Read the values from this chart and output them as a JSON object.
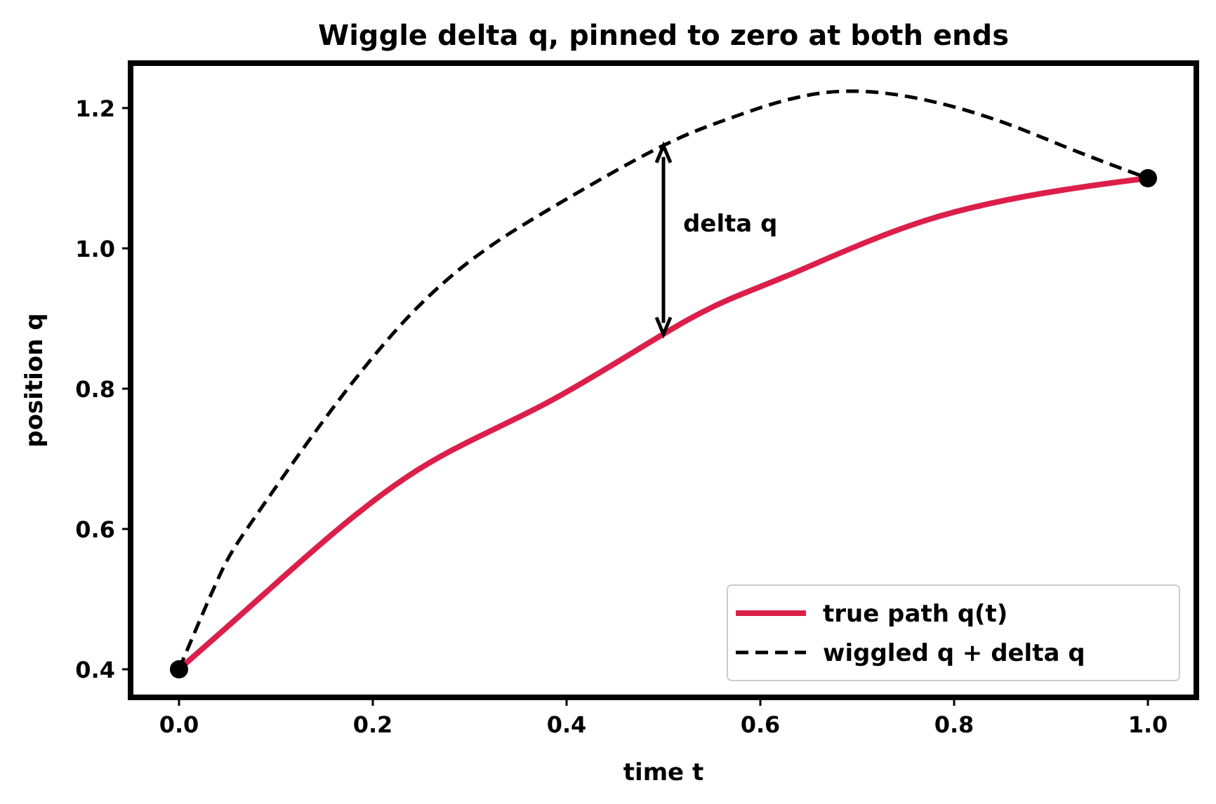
{
  "chart_data": {
    "type": "line",
    "title": "Wiggle delta q, pinned to zero at both ends",
    "xlabel": "time  t",
    "ylabel": "position  q",
    "xlim": [
      -0.05,
      1.05
    ],
    "ylim": [
      0.36,
      1.264
    ],
    "xticks": [
      {
        "value": 0,
        "label": "0.0"
      },
      0.2,
      0.4,
      0.6,
      0.8,
      {
        "value": 1,
        "label": "1.0"
      }
    ],
    "yticks": [
      0.4,
      0.6,
      0.8,
      {
        "value": 1,
        "label": "1.0"
      },
      1.2
    ],
    "legend": "bottom right",
    "grid": false,
    "series": [
      {
        "name": "true path q(t)",
        "color": "#dc1f4a",
        "line_style": "solid",
        "x": [
          0,
          0.09,
          0.235,
          0.38,
          0.525,
          0.626,
          0.771,
          0.916,
          1
        ],
        "values": [
          0.4,
          0.51,
          0.674,
          0.78,
          0.898,
          0.96,
          1.04,
          1.084,
          1.1
        ]
      },
      {
        "name": "wiggled q + delta q",
        "color": "#000000",
        "line_style": "dashed",
        "x": [
          0,
          0.042,
          0.09,
          0.235,
          0.38,
          0.496,
          0.578,
          0.688,
          0.819,
          0.916,
          1
        ],
        "values": [
          0.4,
          0.534,
          0.64,
          0.9,
          1.054,
          1.144,
          1.19,
          1.224,
          1.194,
          1.144,
          1.1
        ]
      },
      {
        "type": "scatter",
        "color": "#000000",
        "marker": "circle",
        "x": [
          0,
          1
        ],
        "values": [
          0.4,
          1.1
        ]
      }
    ],
    "annotations": [
      "delta q"
    ]
  }
}
